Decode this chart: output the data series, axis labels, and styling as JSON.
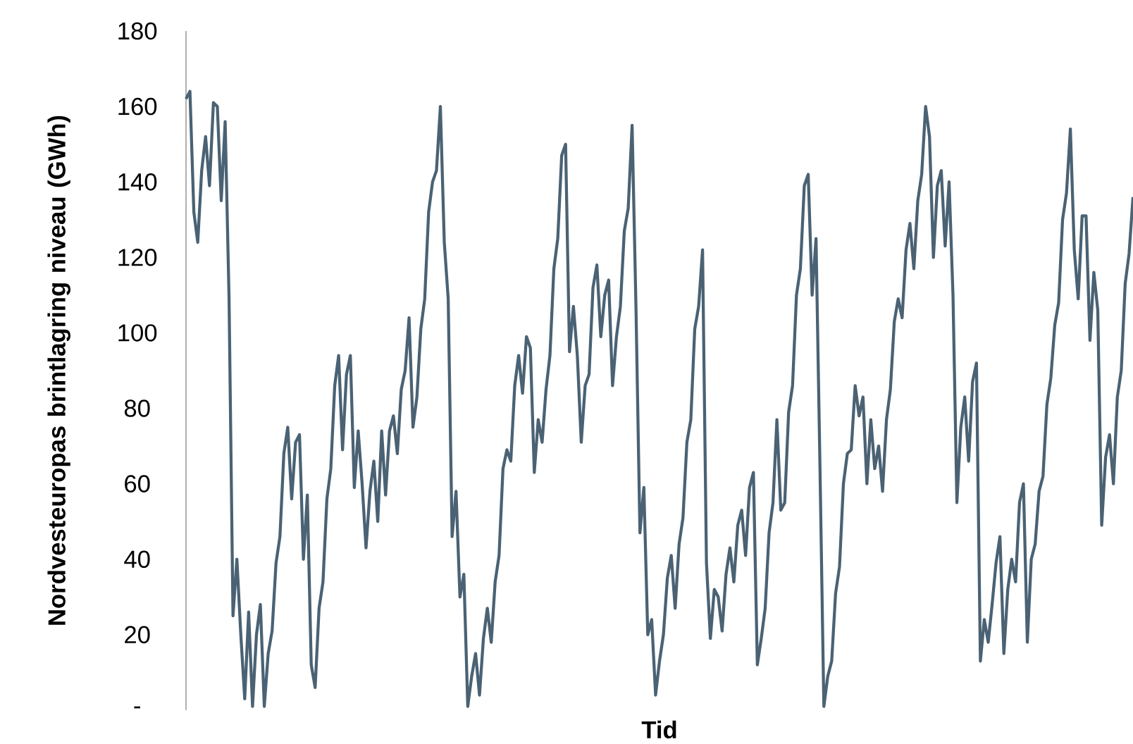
{
  "chart_data": {
    "type": "line",
    "xlabel": "Tid",
    "ylabel": "Nordvesteuropas brintlagring niveau (GWh)",
    "color": "#4a6274",
    "tick_labels": "y",
    "ylim": [
      0,
      180
    ],
    "yticks": [
      {
        "value": 0,
        "label": "-"
      },
      20,
      40,
      60,
      80,
      100,
      120,
      140,
      160,
      180
    ],
    "categories": [
      null,
      null,
      null,
      null,
      null,
      null,
      null,
      null,
      null,
      null,
      null,
      null,
      null,
      null,
      null,
      null,
      null,
      null,
      null,
      null,
      null,
      null,
      null,
      null,
      null,
      null,
      null,
      null,
      null,
      null,
      null,
      null,
      null,
      null,
      null,
      null,
      null,
      null,
      null,
      null,
      null,
      null,
      null,
      null,
      null,
      null,
      null,
      null,
      null,
      null,
      null,
      null,
      null,
      null,
      null,
      null,
      null,
      null,
      null,
      null,
      null,
      null,
      null,
      null,
      null,
      null,
      null,
      null,
      null,
      null,
      null,
      null,
      null,
      null,
      null,
      null,
      null,
      null,
      null,
      null,
      null,
      null,
      null,
      null,
      null,
      null,
      null,
      null,
      null,
      null,
      null,
      null,
      null,
      null,
      null,
      null,
      null,
      null,
      null,
      null,
      null,
      null,
      null,
      null,
      null,
      null,
      null,
      null,
      null,
      null,
      null,
      null,
      null,
      null,
      null,
      null,
      null,
      null,
      null,
      null,
      null,
      null,
      null,
      null,
      null,
      null,
      null,
      null,
      null,
      null,
      null,
      null,
      null,
      null,
      null,
      null,
      null,
      null,
      null,
      null,
      null,
      null,
      null,
      null,
      null,
      null,
      null,
      null,
      null,
      null,
      null,
      null,
      null,
      null,
      null,
      null,
      null,
      null,
      null,
      null,
      null,
      null,
      null,
      null,
      null,
      null,
      null,
      null,
      null,
      null,
      null,
      null,
      null,
      null,
      null,
      null,
      null,
      null,
      null,
      null,
      null,
      null,
      null,
      null,
      null,
      null,
      null,
      null,
      null,
      null,
      null,
      null,
      null,
      null,
      null,
      null,
      null,
      null,
      null,
      null,
      null,
      null,
      null,
      null,
      null,
      null,
      null,
      null,
      null,
      null,
      null,
      null,
      null,
      null,
      null,
      null,
      null,
      null,
      null,
      null,
      null,
      null,
      null,
      null,
      null,
      null,
      null,
      null,
      null,
      null,
      null,
      null,
      null,
      null,
      null,
      null,
      null,
      null,
      null,
      null,
      null,
      null,
      null
    ],
    "values": [
      162,
      164,
      132,
      124,
      143,
      152,
      139,
      161,
      160,
      135,
      156,
      109,
      25,
      40,
      20,
      3,
      26,
      1,
      20,
      28,
      1,
      15,
      21,
      39,
      46,
      68,
      75,
      56,
      71,
      73,
      40,
      57,
      12,
      6,
      27,
      34,
      56,
      64,
      86,
      94,
      69,
      89,
      94,
      59,
      74,
      60,
      43,
      58,
      66,
      50,
      74,
      57,
      74,
      78,
      68,
      85,
      90,
      104,
      75,
      83,
      101,
      109,
      132,
      140,
      143,
      160,
      124,
      109,
      46,
      58,
      30,
      36,
      1,
      9,
      15,
      4,
      19,
      27,
      18,
      34,
      41,
      64,
      69,
      66,
      86,
      94,
      84,
      99,
      96,
      63,
      77,
      71,
      85,
      94,
      117,
      125,
      147,
      150,
      95,
      107,
      94,
      71,
      86,
      89,
      112,
      118,
      99,
      110,
      114,
      86,
      99,
      107,
      127,
      133,
      155,
      106,
      47,
      59,
      20,
      24,
      4,
      13,
      20,
      35,
      41,
      27,
      44,
      51,
      71,
      77,
      101,
      107,
      122,
      39,
      19,
      32,
      30,
      21,
      36,
      43,
      34,
      49,
      53,
      41,
      59,
      63,
      12,
      19,
      27,
      47,
      55,
      77,
      53,
      55,
      79,
      86,
      110,
      117,
      139,
      142,
      110,
      125,
      65,
      1,
      9,
      13,
      31,
      38,
      60,
      68,
      69,
      86,
      78,
      83,
      60,
      77,
      64,
      70,
      58,
      77,
      85,
      103,
      109,
      104,
      122,
      129,
      117,
      135,
      142,
      160,
      152,
      120,
      139,
      143,
      123,
      140,
      110,
      55,
      75,
      83,
      66,
      87,
      92,
      13,
      24,
      18,
      28,
      39,
      46,
      15,
      32,
      40,
      34,
      55,
      60,
      18,
      40,
      44,
      58,
      62,
      81,
      88,
      102,
      108,
      130,
      137,
      154,
      122,
      109,
      131,
      131,
      98,
      116,
      106,
      49,
      67,
      73,
      60,
      83,
      90,
      113,
      121,
      136
    ]
  }
}
